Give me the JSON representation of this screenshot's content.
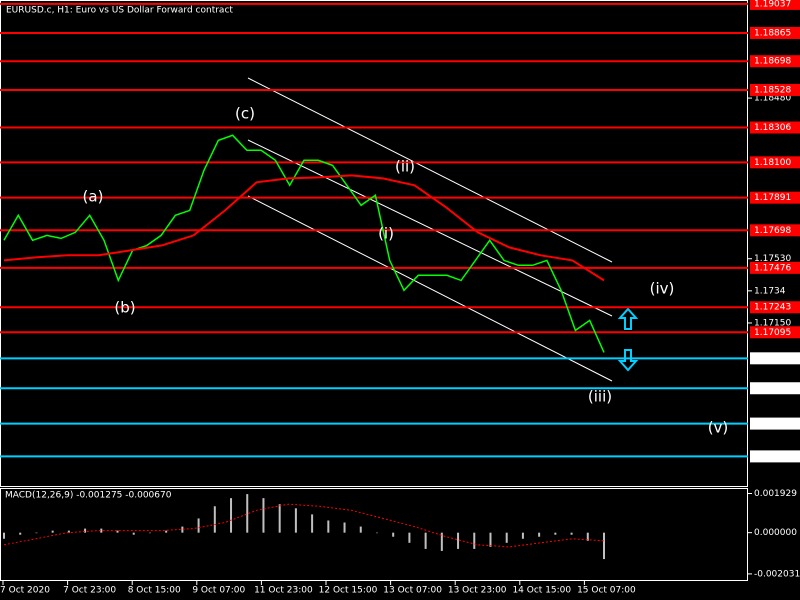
{
  "chart_data": {
    "type": "line",
    "title": "EURUSD.c, H1:  Euro vs US Dollar Forward contract",
    "xlabels": [
      "7 Oct 2020",
      "7 Oct 23:00",
      "8 Oct 15:00",
      "9 Oct 07:00",
      "11 Oct 23:00",
      "12 Oct 15:00",
      "13 Oct 07:00",
      "13 Oct 23:00",
      "14 Oct 15:00",
      "15 Oct 07:00"
    ],
    "ylim": [
      1.1618,
      1.1906
    ],
    "yticks": [
      {
        "value": 1.1848,
        "label": "1.18480"
      },
      {
        "value": 1.1753,
        "label": "1.17530"
      },
      1.1734,
      {
        "value": 1.1715,
        "label": "1.17150"
      }
    ],
    "levels": [
      1.19037,
      1.18865,
      1.18698,
      1.18528,
      1.18306,
      {
        "value": 1.181,
        "label": "1.18100"
      },
      1.17891,
      1.17698,
      1.17476,
      1.17243,
      1.17095,
      1.16941,
      1.16764,
      1.16555,
      1.16361
    ],
    "level_colors": [
      "#ff0000",
      "#ff0000",
      "#ff0000",
      "#ff0000",
      "#ff0000",
      "#ff0000",
      "#ff0000",
      "#ff0000",
      "#ff0000",
      "#ff0000",
      "#ff0000",
      "#00d0ff",
      "#00d0ff",
      "#00d0ff",
      "#00d0ff"
    ],
    "price": {
      "color": "#00ff00",
      "values": [
        1.17639,
        1.17787,
        1.17639,
        1.17668,
        1.1765,
        1.17686,
        1.17787,
        1.17639,
        1.17402,
        1.17579,
        1.17609,
        1.17668,
        1.17787,
        1.17816,
        1.18053,
        1.1823,
        1.1826,
        1.18171,
        1.18171,
        1.18112,
        1.17964,
        1.18112,
        1.18112,
        1.18082,
        1.17964,
        1.17846,
        1.17905,
        1.1752,
        1.17343,
        1.17432,
        1.17432,
        1.17432,
        1.17402,
        1.1752,
        1.17639,
        1.1752,
        1.17491,
        1.17491,
        1.1752,
        1.17343,
        1.17106,
        1.17165,
        1.16976
      ]
    },
    "ma": {
      "color": "#ff0000",
      "values": [
        1.1752,
        1.17538,
        1.1755,
        1.1755,
        1.17579,
        1.17609,
        1.17668,
        1.17816,
        1.17982,
        1.18005,
        1.18011,
        1.18023,
        1.18005,
        1.17964,
        1.17834,
        1.17686,
        1.17597,
        1.1755,
        1.1752,
        1.17402
      ]
    },
    "annotations": [
      {
        "text": "(a)",
        "color": "#ffb000"
      },
      {
        "text": "(b)",
        "color": "#ffb000"
      },
      {
        "text": "(c)",
        "color": "#ffb000"
      },
      {
        "text": "(i)",
        "color": "#ffffff"
      },
      {
        "text": "(ii)",
        "color": "#ffffff"
      },
      {
        "text": "(iii)",
        "color": "#ffffff"
      },
      {
        "text": "(iv)",
        "color": "#ffffff"
      },
      {
        "text": "(v)",
        "color": "#ffffff"
      }
    ],
    "macd": {
      "label": "MACD(12,26,9) -0.001275 -0.000670",
      "ylim": [
        -0.00238,
        0.00215
      ],
      "yticks": [
        0.001929,
        {
          "value": 0,
          "label": "0.000000"
        },
        -0.002031
      ],
      "histogram": {
        "color": "#c0c0c0",
        "values": [
          -0.0003,
          -0.0001,
          0,
          0.0001,
          0.0001,
          0.0002,
          0.0002,
          0.0001,
          -0.0001,
          0,
          0.0001,
          0.0003,
          0.0007,
          0.0013,
          0.0017,
          0.0019,
          0.0017,
          0.0014,
          0.0012,
          0.0009,
          0.0006,
          0.0005,
          0.0003,
          0,
          -0.0002,
          -0.0005,
          -0.0008,
          -0.0009,
          -0.0008,
          -0.0008,
          -0.0007,
          -0.0005,
          -0.0003,
          -0.0002,
          -0.0001,
          -0.0001,
          -0.0004,
          -0.0013
        ]
      },
      "signal": {
        "color": "#ff0000",
        "values": [
          -0.0006,
          -0.0003,
          0,
          0.0001,
          0.0001,
          0.0001,
          0.0002,
          0.0005,
          0.0011,
          0.0014,
          0.0013,
          0.0011,
          0.0007,
          0.0003,
          -0.0002,
          -0.0006,
          -0.0007,
          -0.0005,
          -0.0003,
          -0.0004
        ]
      }
    }
  }
}
